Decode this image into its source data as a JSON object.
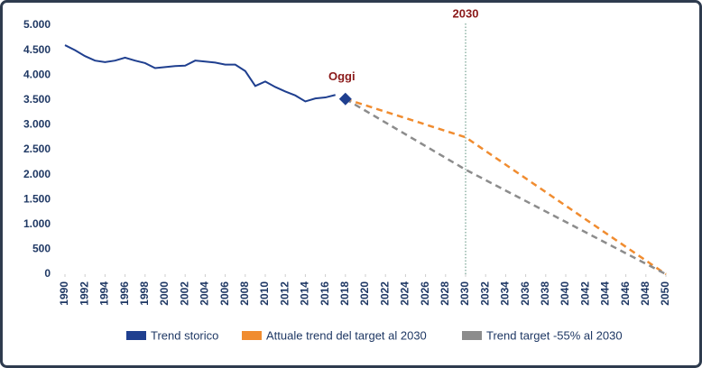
{
  "chart_data": {
    "type": "line",
    "xlim": [
      1990,
      2050
    ],
    "xticks": [
      1990,
      1992,
      1994,
      1996,
      1998,
      2000,
      2002,
      2004,
      2006,
      2008,
      2010,
      2012,
      2014,
      2016,
      2018,
      2020,
      2022,
      2024,
      2026,
      2028,
      2030,
      2032,
      2034,
      2036,
      2038,
      2040,
      2042,
      2044,
      2046,
      2048,
      2050
    ],
    "ylim": [
      0,
      5000
    ],
    "yticks": [
      0,
      500,
      {
        "value": 1000,
        "label": "1.000"
      },
      {
        "value": 1500,
        "label": "1.500"
      },
      {
        "value": 2000,
        "label": "2.000"
      },
      {
        "value": 2500,
        "label": "2.500"
      },
      {
        "value": 3000,
        "label": "3.000"
      },
      {
        "value": 3500,
        "label": "3.500"
      },
      {
        "value": 4000,
        "label": "4.000"
      },
      {
        "value": 4500,
        "label": "4.500"
      },
      {
        "value": 5000,
        "label": "5.000"
      }
    ],
    "series": [
      {
        "name": "Trend storico",
        "color": "#1f3f8f",
        "dashed": false,
        "x": [
          1990,
          1991,
          1992,
          1993,
          1994,
          1995,
          1996,
          1997,
          1998,
          1999,
          2000,
          2001,
          2002,
          2003,
          2004,
          2005,
          2006,
          2007,
          2008,
          2009,
          2010,
          2011,
          2012,
          2013,
          2014,
          2015,
          2016,
          2017
        ],
        "values": [
          4600,
          4500,
          4380,
          4290,
          4260,
          4290,
          4350,
          4290,
          4240,
          4140,
          4160,
          4180,
          4190,
          4290,
          4270,
          4250,
          4210,
          4210,
          4080,
          3780,
          3870,
          3760,
          3670,
          3590,
          3470,
          3530,
          3550,
          3600
        ]
      },
      {
        "name": "Attuale trend del target al 2030",
        "color": "#f08c30",
        "dashed": true,
        "x": [
          2018,
          2030,
          2050
        ],
        "values": [
          3520,
          2750,
          0
        ]
      },
      {
        "name": "Trend target -55% al 2030",
        "color": "#8c8c8c",
        "dashed": true,
        "x": [
          2018,
          2030,
          2050
        ],
        "values": [
          3520,
          2100,
          0
        ]
      }
    ],
    "annotations": [
      {
        "text": "Oggi",
        "x": 2018,
        "y": 3520
      },
      {
        "text": "2030",
        "x": 2030
      }
    ]
  }
}
